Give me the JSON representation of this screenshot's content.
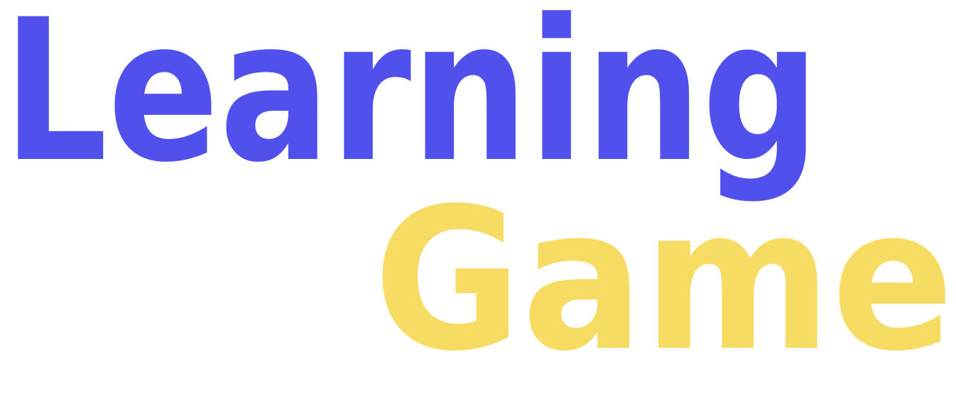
{
  "logo": {
    "line1": "Learning",
    "line2": "Game"
  },
  "colors": {
    "primary": "#5051EC",
    "accent": "#F7DC63",
    "background": "#FFFFFF"
  }
}
